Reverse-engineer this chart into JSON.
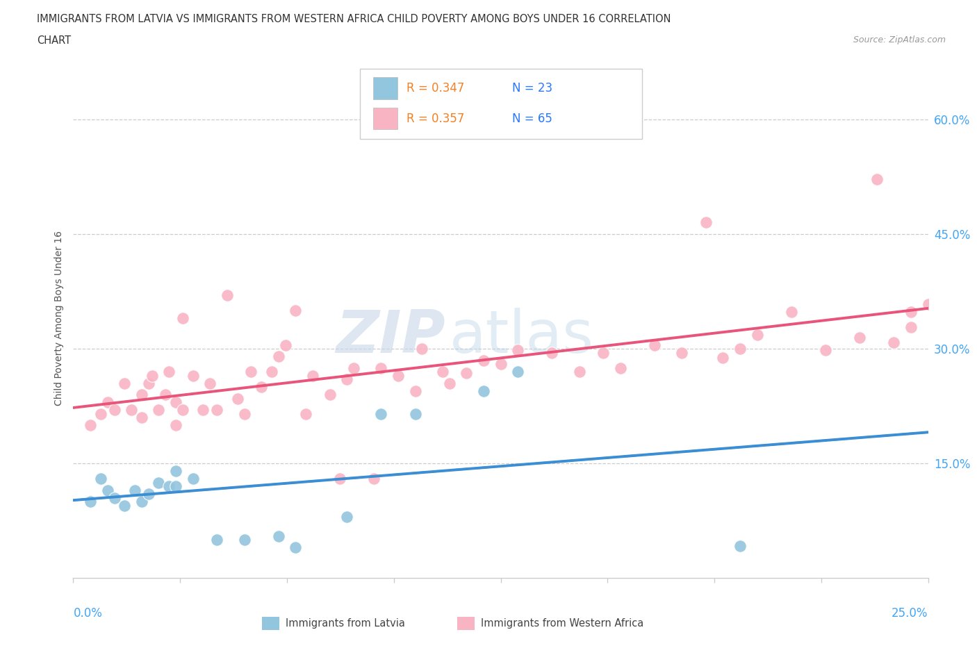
{
  "title_line1": "IMMIGRANTS FROM LATVIA VS IMMIGRANTS FROM WESTERN AFRICA CHILD POVERTY AMONG BOYS UNDER 16 CORRELATION",
  "title_line2": "CHART",
  "source": "Source: ZipAtlas.com",
  "ylabel": "Child Poverty Among Boys Under 16",
  "y_tick_labels": [
    "15.0%",
    "30.0%",
    "45.0%",
    "60.0%"
  ],
  "y_tick_values": [
    0.15,
    0.3,
    0.45,
    0.6
  ],
  "x_left_label": "0.0%",
  "x_right_label": "25.0%",
  "x_range": [
    0.0,
    0.25
  ],
  "y_range": [
    0.0,
    0.68
  ],
  "legend_R_latvia": "R = 0.347",
  "legend_N_latvia": "N = 23",
  "legend_R_africa": "R = 0.357",
  "legend_N_africa": "N = 65",
  "latvia_color": "#92C5DE",
  "africa_color": "#F9B4C3",
  "line_latvia_color": "#3B8ED4",
  "line_africa_color": "#E8547A",
  "dashed_line_color": "#7BB8E8",
  "grid_color": "#CCCCCC",
  "R_color": "#F48024",
  "N_color": "#2979FF",
  "watermark_color_zip": "#C8D8E8",
  "watermark_color_atlas": "#B8D0E8",
  "latvia_x": [
    0.005,
    0.008,
    0.01,
    0.012,
    0.015,
    0.018,
    0.02,
    0.022,
    0.025,
    0.028,
    0.03,
    0.03,
    0.035,
    0.042,
    0.05,
    0.06,
    0.065,
    0.08,
    0.09,
    0.1,
    0.12,
    0.13,
    0.195
  ],
  "latvia_y": [
    0.1,
    0.13,
    0.115,
    0.105,
    0.095,
    0.115,
    0.1,
    0.11,
    0.125,
    0.12,
    0.12,
    0.14,
    0.13,
    0.05,
    0.05,
    0.055,
    0.04,
    0.08,
    0.215,
    0.215,
    0.245,
    0.27,
    0.042
  ],
  "africa_x": [
    0.005,
    0.008,
    0.01,
    0.012,
    0.015,
    0.017,
    0.02,
    0.02,
    0.022,
    0.023,
    0.025,
    0.027,
    0.028,
    0.03,
    0.03,
    0.032,
    0.032,
    0.035,
    0.038,
    0.04,
    0.042,
    0.045,
    0.048,
    0.05,
    0.052,
    0.055,
    0.058,
    0.06,
    0.062,
    0.065,
    0.068,
    0.07,
    0.075,
    0.078,
    0.08,
    0.082,
    0.088,
    0.09,
    0.095,
    0.1,
    0.102,
    0.108,
    0.11,
    0.115,
    0.12,
    0.125,
    0.13,
    0.14,
    0.148,
    0.155,
    0.16,
    0.17,
    0.178,
    0.185,
    0.19,
    0.195,
    0.2,
    0.21,
    0.22,
    0.23,
    0.235,
    0.24,
    0.245,
    0.245,
    0.25
  ],
  "africa_y": [
    0.2,
    0.215,
    0.23,
    0.22,
    0.255,
    0.22,
    0.21,
    0.24,
    0.255,
    0.265,
    0.22,
    0.24,
    0.27,
    0.2,
    0.23,
    0.34,
    0.22,
    0.265,
    0.22,
    0.255,
    0.22,
    0.37,
    0.235,
    0.215,
    0.27,
    0.25,
    0.27,
    0.29,
    0.305,
    0.35,
    0.215,
    0.265,
    0.24,
    0.13,
    0.26,
    0.275,
    0.13,
    0.275,
    0.265,
    0.245,
    0.3,
    0.27,
    0.255,
    0.268,
    0.285,
    0.28,
    0.298,
    0.295,
    0.27,
    0.295,
    0.275,
    0.305,
    0.295,
    0.465,
    0.288,
    0.3,
    0.318,
    0.348,
    0.298,
    0.315,
    0.522,
    0.308,
    0.328,
    0.348,
    0.358
  ]
}
